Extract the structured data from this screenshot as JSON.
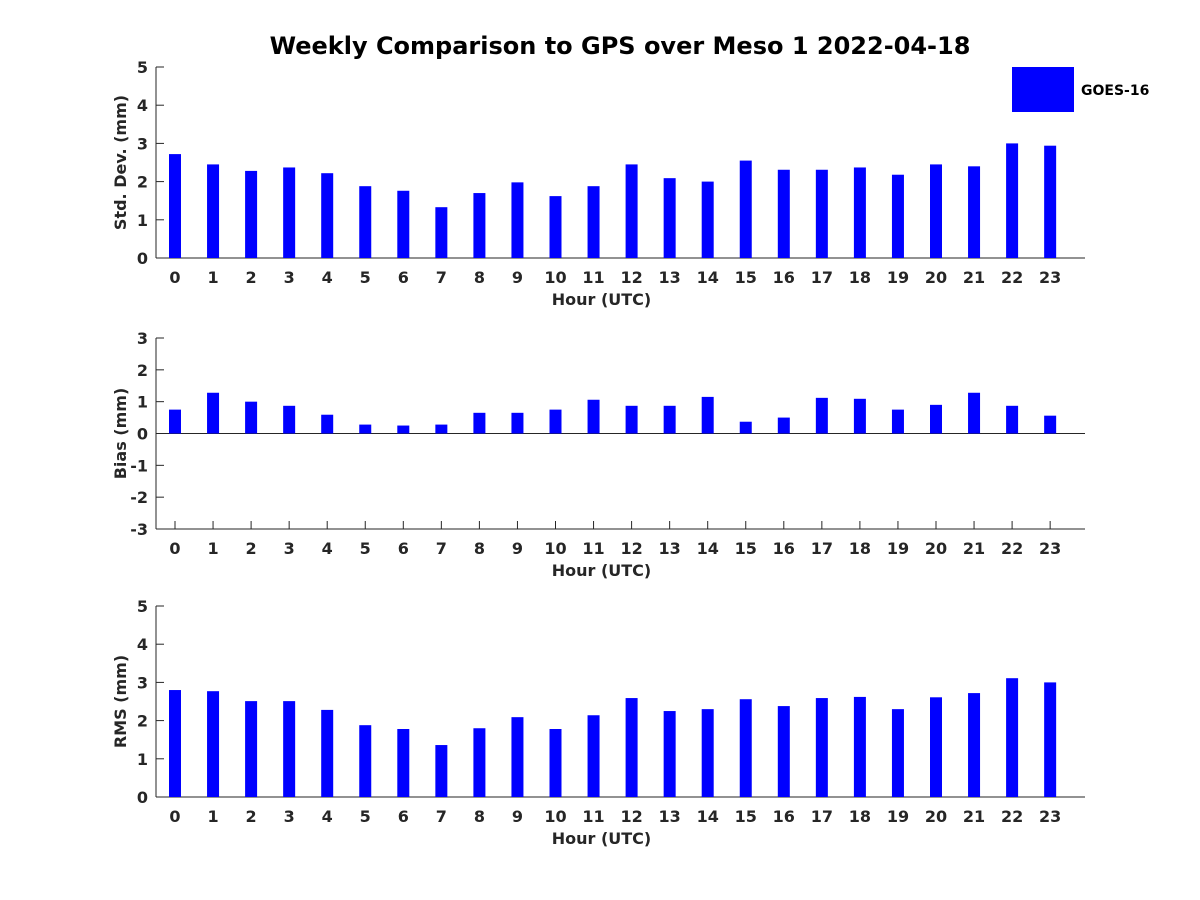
{
  "title": "Weekly Comparison to GPS over Meso 1 2022-04-18",
  "legend": {
    "label": "GOES-16",
    "color": "#0000ff"
  },
  "chart_data": [
    {
      "type": "bar",
      "categories": [
        "0",
        "1",
        "2",
        "3",
        "4",
        "5",
        "6",
        "7",
        "8",
        "9",
        "10",
        "11",
        "12",
        "13",
        "14",
        "15",
        "16",
        "17",
        "18",
        "19",
        "20",
        "21",
        "22",
        "23"
      ],
      "series": [
        {
          "name": "GOES-16",
          "values": [
            2.72,
            2.45,
            2.28,
            2.37,
            2.22,
            1.88,
            1.76,
            1.33,
            1.7,
            1.98,
            1.62,
            1.88,
            2.45,
            2.09,
            2.0,
            2.55,
            2.31,
            2.31,
            2.37,
            2.18,
            2.45,
            2.4,
            3.0,
            2.94
          ]
        }
      ],
      "xlabel": "Hour (UTC)",
      "ylabel": "Std. Dev. (mm)",
      "ylim": [
        0,
        5
      ],
      "yticks": [
        "0",
        "1",
        "2",
        "3",
        "4",
        "5"
      ],
      "legend_position": "top-right",
      "grid": false
    },
    {
      "type": "bar",
      "categories": [
        "0",
        "1",
        "2",
        "3",
        "4",
        "5",
        "6",
        "7",
        "8",
        "9",
        "10",
        "11",
        "12",
        "13",
        "14",
        "15",
        "16",
        "17",
        "18",
        "19",
        "20",
        "21",
        "22",
        "23"
      ],
      "series": [
        {
          "name": "GOES-16",
          "values": [
            0.75,
            1.28,
            1.0,
            0.87,
            0.59,
            0.28,
            0.25,
            0.28,
            0.65,
            0.65,
            0.75,
            1.06,
            0.87,
            0.87,
            1.15,
            0.37,
            0.5,
            1.12,
            1.09,
            0.75,
            0.9,
            1.28,
            0.87,
            0.56
          ]
        }
      ],
      "xlabel": "Hour (UTC)",
      "ylabel": "Bias (mm)",
      "ylim": [
        -3,
        3
      ],
      "yticks": [
        "-3",
        "-2",
        "-1",
        "0",
        "1",
        "2",
        "3"
      ],
      "grid": false
    },
    {
      "type": "bar",
      "categories": [
        "0",
        "1",
        "2",
        "3",
        "4",
        "5",
        "6",
        "7",
        "8",
        "9",
        "10",
        "11",
        "12",
        "13",
        "14",
        "15",
        "16",
        "17",
        "18",
        "19",
        "20",
        "21",
        "22",
        "23"
      ],
      "series": [
        {
          "name": "GOES-16",
          "values": [
            2.8,
            2.77,
            2.51,
            2.51,
            2.28,
            1.88,
            1.78,
            1.36,
            1.8,
            2.09,
            1.78,
            2.14,
            2.59,
            2.25,
            2.3,
            2.56,
            2.38,
            2.59,
            2.62,
            2.3,
            2.61,
            2.72,
            3.11,
            3.0
          ]
        }
      ],
      "xlabel": "Hour (UTC)",
      "ylabel": "RMS (mm)",
      "ylim": [
        0,
        5
      ],
      "yticks": [
        "0",
        "1",
        "2",
        "3",
        "4",
        "5"
      ],
      "grid": false
    }
  ]
}
